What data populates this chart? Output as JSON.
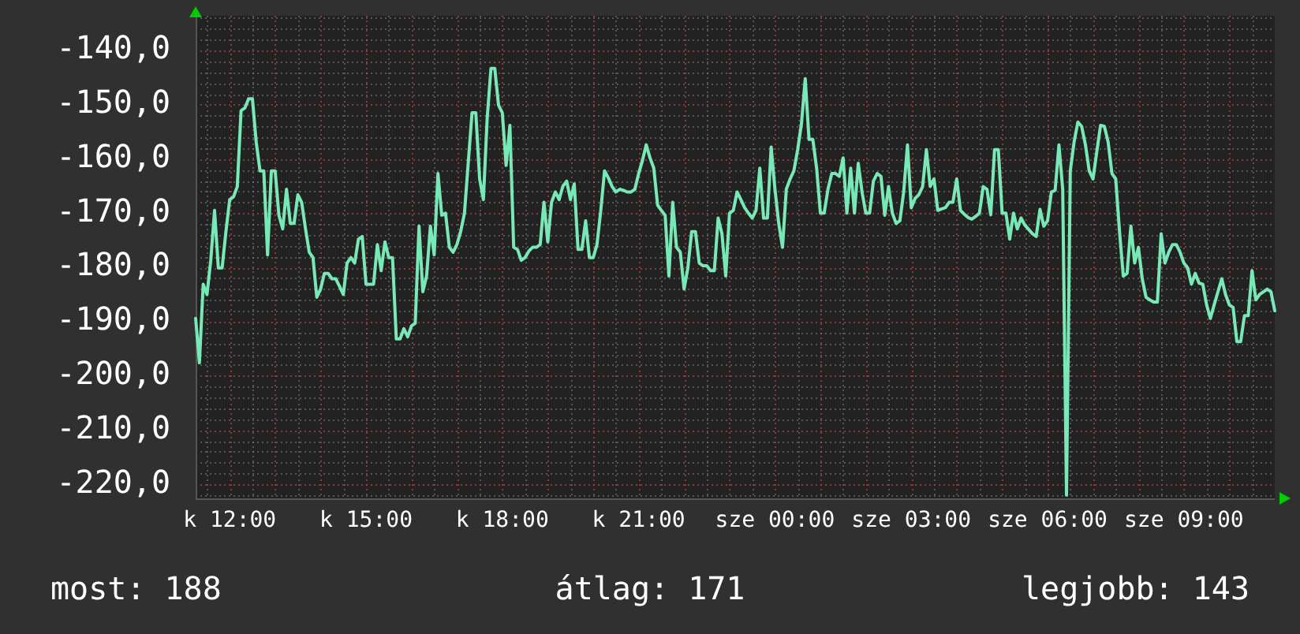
{
  "chart_data": {
    "type": "line",
    "color": "#77e8b6",
    "grid": true,
    "ylim": [
      -222.6,
      -133.6
    ],
    "yticks": [
      {
        "value": -140,
        "label": "-140,0"
      },
      {
        "value": -150,
        "label": "-150,0"
      },
      {
        "value": -160,
        "label": "-160,0"
      },
      {
        "value": -170,
        "label": "-170,0"
      },
      {
        "value": -180,
        "label": "-180,0"
      },
      {
        "value": -190,
        "label": "-190,0"
      },
      {
        "value": -200,
        "label": "-200,0"
      },
      {
        "value": -210,
        "label": "-210,0"
      },
      {
        "value": -220,
        "label": "-220,0"
      }
    ],
    "annotations": [
      "most: 188",
      "átlag: 171",
      "legjobb: 143"
    ],
    "categories": [
      null,
      null,
      null,
      null,
      null,
      null,
      null,
      null,
      null,
      "k 12:00",
      null,
      null,
      null,
      null,
      null,
      null,
      null,
      null,
      null,
      null,
      null,
      null,
      null,
      null,
      null,
      null,
      null,
      null,
      null,
      null,
      null,
      null,
      null,
      null,
      null,
      null,
      null,
      null,
      null,
      null,
      null,
      null,
      null,
      null,
      null,
      "k 15:00",
      null,
      null,
      null,
      null,
      null,
      null,
      null,
      null,
      null,
      null,
      null,
      null,
      null,
      null,
      null,
      null,
      null,
      null,
      null,
      null,
      null,
      null,
      null,
      null,
      null,
      null,
      null,
      null,
      null,
      null,
      null,
      null,
      null,
      null,
      null,
      "k 18:00",
      null,
      null,
      null,
      null,
      null,
      null,
      null,
      null,
      null,
      null,
      null,
      null,
      null,
      null,
      null,
      null,
      null,
      null,
      null,
      null,
      null,
      null,
      null,
      null,
      null,
      null,
      null,
      null,
      null,
      null,
      null,
      null,
      null,
      null,
      null,
      "k 21:00",
      null,
      null,
      null,
      null,
      null,
      null,
      null,
      null,
      null,
      null,
      null,
      null,
      null,
      null,
      null,
      null,
      null,
      null,
      null,
      null,
      null,
      null,
      null,
      null,
      null,
      null,
      null,
      null,
      null,
      null,
      null,
      null,
      null,
      null,
      null,
      "sze 00:00",
      null,
      null,
      null,
      null,
      null,
      null,
      null,
      null,
      null,
      null,
      null,
      null,
      null,
      null,
      null,
      null,
      null,
      null,
      null,
      null,
      null,
      null,
      null,
      null,
      null,
      null,
      null,
      null,
      null,
      null,
      null,
      null,
      null,
      null,
      null,
      "sze 03:00",
      null,
      null,
      null,
      null,
      null,
      null,
      null,
      null,
      null,
      null,
      null,
      null,
      null,
      null,
      null,
      null,
      null,
      null,
      null,
      null,
      null,
      null,
      null,
      null,
      null,
      null,
      null,
      null,
      null,
      null,
      null,
      null,
      null,
      null,
      null,
      "sze 06:00",
      null,
      null,
      null,
      null,
      null,
      null,
      null,
      null,
      null,
      null,
      null,
      null,
      null,
      null,
      null,
      null,
      null,
      null,
      null,
      null,
      null,
      null,
      null,
      null,
      null,
      null,
      null,
      null,
      null,
      null,
      null,
      null,
      null,
      null,
      null,
      "sze 09:00",
      null,
      null,
      null,
      null,
      null,
      null,
      null,
      null,
      null,
      null,
      null,
      null,
      null,
      null,
      null,
      null,
      null,
      null,
      null,
      null,
      null,
      null,
      null,
      null
    ],
    "values": [
      -189.4,
      -197.6,
      -183.1,
      -185.0,
      -178.7,
      -169.5,
      -180.1,
      -180.1,
      -173.4,
      -167.5,
      -167.0,
      -165.1,
      -151.1,
      -150.6,
      -148.9,
      -148.9,
      -156.9,
      -162.2,
      -162.2,
      -177.7,
      -162.2,
      -162.2,
      -170.4,
      -172.9,
      -165.6,
      -171.9,
      -171.9,
      -166.6,
      -168.0,
      -172.8,
      -177.2,
      -178.2,
      -185.5,
      -184.0,
      -181.1,
      -181.1,
      -182.1,
      -182.1,
      -183.5,
      -185.0,
      -179.2,
      -178.2,
      -179.2,
      -174.8,
      -174.3,
      -183.1,
      -183.1,
      -183.1,
      -175.8,
      -180.6,
      -175.3,
      -178.2,
      -178.2,
      -193.2,
      -193.2,
      -191.3,
      -192.8,
      -190.8,
      -190.3,
      -172.4,
      -184.5,
      -181.6,
      -172.4,
      -177.7,
      -162.7,
      -170.4,
      -170.0,
      -176.3,
      -177.2,
      -175.8,
      -173.4,
      -170.0,
      -160.7,
      -151.5,
      -151.5,
      -163.7,
      -167.5,
      -152.5,
      -143.3,
      -143.3,
      -150.1,
      -151.5,
      -161.2,
      -153.8,
      -176.3,
      -176.7,
      -178.7,
      -178.2,
      -177.0,
      -176.3,
      -176.3,
      -175.8,
      -168.0,
      -175.3,
      -168.0,
      -166.1,
      -167.5,
      -165.0,
      -164.1,
      -167.5,
      -164.6,
      -176.7,
      -176.7,
      -171.4,
      -178.2,
      -178.2,
      -175.8,
      -169.5,
      -162.2,
      -163.5,
      -165.1,
      -166.1,
      -165.6,
      -165.8,
      -166.1,
      -166.1,
      -165.6,
      -162.7,
      -160.3,
      -157.4,
      -159.8,
      -161.7,
      -168.5,
      -169.5,
      -170.4,
      -181.6,
      -168.0,
      -176.3,
      -177.2,
      -184.0,
      -180.1,
      -173.4,
      -173.4,
      -179.2,
      -179.7,
      -179.7,
      -180.6,
      -180.6,
      -170.9,
      -173.8,
      -181.6,
      -170.0,
      -169.5,
      -166.1,
      -167.5,
      -169.0,
      -170.0,
      -170.9,
      -169.5,
      -161.7,
      -170.9,
      -170.9,
      -157.8,
      -165.6,
      -171.9,
      -176.3,
      -165.6,
      -163.7,
      -162.2,
      -158.3,
      -153.5,
      -145.2,
      -156.4,
      -156.4,
      -161.7,
      -170.0,
      -170.0,
      -165.6,
      -162.7,
      -162.7,
      -163.2,
      -159.8,
      -170.0,
      -161.7,
      -170.0,
      -160.8,
      -166.1,
      -170.0,
      -170.0,
      -164.1,
      -162.7,
      -163.2,
      -170.4,
      -165.1,
      -170.0,
      -171.9,
      -171.4,
      -166.1,
      -157.4,
      -169.0,
      -167.3,
      -166.6,
      -165.1,
      -158.3,
      -165.1,
      -163.7,
      -169.5,
      -169.2,
      -169.0,
      -168.0,
      -168.0,
      -163.7,
      -169.5,
      -170.2,
      -170.8,
      -171.1,
      -170.6,
      -170.0,
      -165.1,
      -165.6,
      -170.3,
      -158.3,
      -158.3,
      -170.0,
      -170.0,
      -174.8,
      -170.0,
      -172.9,
      -170.9,
      -172.2,
      -173.0,
      -173.8,
      -174.3,
      -169.3,
      -172.4,
      -171.4,
      -166.1,
      -165.8,
      -157.4,
      -165.6,
      -222,
      -162.2,
      -156.9,
      -153.2,
      -154.0,
      -157.4,
      -162.2,
      -163.7,
      -158.7,
      -153.8,
      -154.0,
      -156.9,
      -162.7,
      -163.7,
      -173.4,
      -181.6,
      -181.1,
      -172.4,
      -179.2,
      -176.3,
      -182.1,
      -185.5,
      -186.0,
      -186.4,
      -186.4,
      -173.8,
      -179.2,
      -177.2,
      -175.8,
      -175.8,
      -177.2,
      -179.2,
      -180.1,
      -183.1,
      -181.1,
      -182.9,
      -183.1,
      -186.9,
      -189.4,
      -186.9,
      -184.5,
      -182.1,
      -185.0,
      -186.9,
      -187.4,
      -193.7,
      -193.7,
      -188.9,
      -188.9,
      -180.6,
      -186.0,
      -185.0,
      -184.5,
      -184.0,
      -184.5,
      -188.0
    ]
  }
}
